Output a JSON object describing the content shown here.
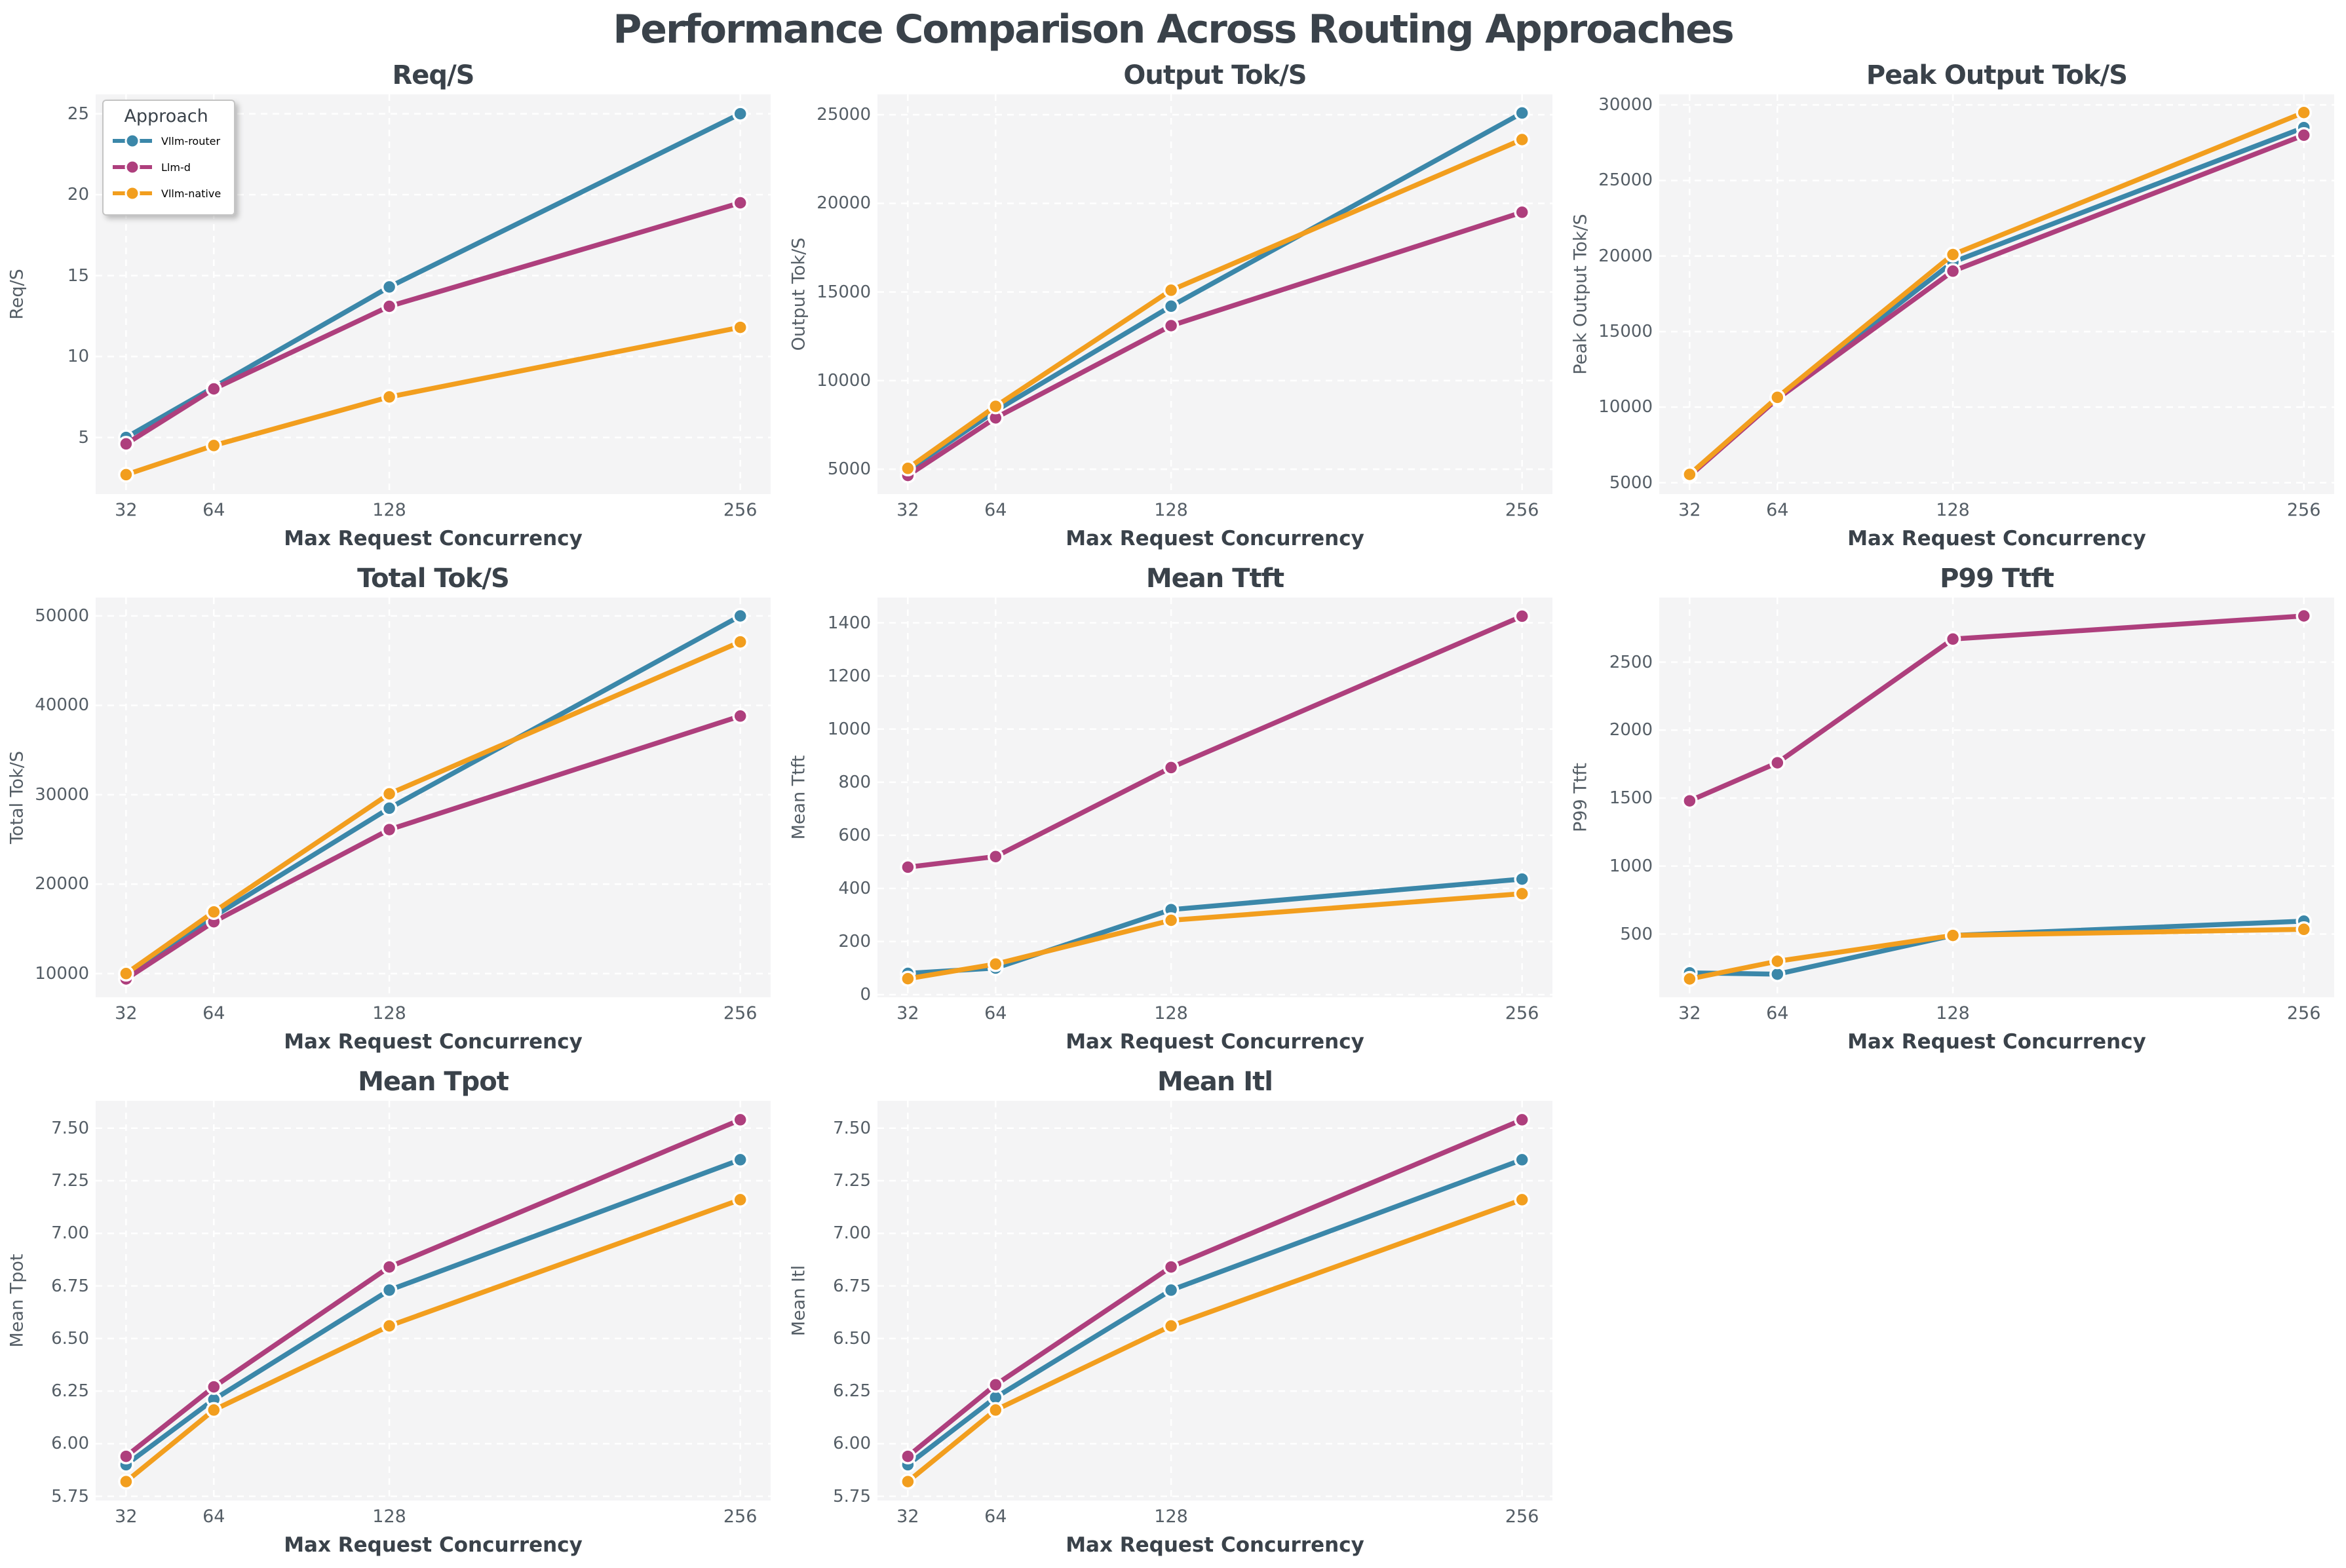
{
  "chart_data": {
    "type": "line",
    "suptitle": "Performance Comparison Across Routing Approaches",
    "x": [
      32,
      64,
      128,
      256
    ],
    "x_tick_labels": [
      "32",
      "64",
      "128",
      "256"
    ],
    "xlabel": "Max Request Concurrency",
    "legend": {
      "title": "Approach",
      "position": "upper-left-of-first-subplot",
      "entries": [
        "Vllm-router",
        "Llm-d",
        "Vllm-native"
      ]
    },
    "series_colors": {
      "Vllm-router": "#3b87a9",
      "Llm-d": "#ae3f7d",
      "Vllm-native": "#f29e1e"
    },
    "style": {
      "plot_bg": "#f4f4f5",
      "grid_color": "#ffffff",
      "title_color": "#3a424a",
      "tick_color": "#555e66",
      "grid": "on",
      "grid_dashed": true
    },
    "subplots": [
      {
        "title": "Req/S",
        "ylabel": "Req/S",
        "ylim": [
          1.5,
          26.2
        ],
        "ytick_values": [
          5,
          10,
          15,
          20,
          25
        ],
        "ytick_labels": [
          "5",
          "10",
          "15",
          "20",
          "25"
        ],
        "series": [
          {
            "name": "Vllm-router",
            "values": [
              5.0,
              8.1,
              14.3,
              25.0
            ]
          },
          {
            "name": "Llm-d",
            "values": [
              4.6,
              8.0,
              13.1,
              19.5
            ]
          },
          {
            "name": "Vllm-native",
            "values": [
              2.7,
              4.5,
              7.5,
              11.8
            ]
          }
        ]
      },
      {
        "title": "Output Tok/S",
        "ylabel": "Output Tok/S",
        "ylim": [
          3600,
          26150
        ],
        "ytick_values": [
          5000,
          10000,
          15000,
          20000,
          25000
        ],
        "ytick_labels": [
          "5000",
          "10000",
          "15000",
          "20000",
          "25000"
        ],
        "series": [
          {
            "name": "Vllm-router",
            "values": [
              4950,
              8300,
              14200,
              25100
            ]
          },
          {
            "name": "Llm-d",
            "values": [
              4650,
              7900,
              13100,
              19500
            ]
          },
          {
            "name": "Vllm-native",
            "values": [
              5050,
              8550,
              15100,
              23600
            ]
          }
        ]
      },
      {
        "title": "Peak Output Tok/S",
        "ylabel": "Peak Output Tok/S",
        "ylim": [
          4250,
          30700
        ],
        "ytick_values": [
          5000,
          10000,
          15000,
          20000,
          25000,
          30000
        ],
        "ytick_labels": [
          "5000",
          "10000",
          "15000",
          "20000",
          "25000",
          "30000"
        ],
        "series": [
          {
            "name": "Vllm-router",
            "values": [
              5500,
              10600,
              19600,
              28500
            ]
          },
          {
            "name": "Llm-d",
            "values": [
              5450,
              10550,
              19000,
              28000
            ]
          },
          {
            "name": "Vllm-native",
            "values": [
              5550,
              10650,
              20100,
              29500
            ]
          }
        ]
      },
      {
        "title": "Total Tok/S",
        "ylabel": "Total Tok/S",
        "ylim": [
          7350,
          52050
        ],
        "ytick_values": [
          10000,
          20000,
          30000,
          40000,
          50000
        ],
        "ytick_labels": [
          "10000",
          "20000",
          "30000",
          "40000",
          "50000"
        ],
        "series": [
          {
            "name": "Vllm-router",
            "values": [
              9900,
              16400,
              28500,
              50000
            ]
          },
          {
            "name": "Llm-d",
            "values": [
              9400,
              15800,
              26100,
              38800
            ]
          },
          {
            "name": "Vllm-native",
            "values": [
              10000,
              16900,
              30100,
              47100
            ]
          }
        ]
      },
      {
        "title": "Mean Ttft",
        "ylabel": "Mean Ttft",
        "ylim": [
          -10,
          1495
        ],
        "ytick_values": [
          0,
          200,
          400,
          600,
          800,
          1000,
          1200,
          1400
        ],
        "ytick_labels": [
          "0",
          "200",
          "400",
          "600",
          "800",
          "1000",
          "1200",
          "1400"
        ],
        "series": [
          {
            "name": "Vllm-router",
            "values": [
              80,
              100,
              320,
              435
            ]
          },
          {
            "name": "Llm-d",
            "values": [
              480,
              520,
              855,
              1425
            ]
          },
          {
            "name": "Vllm-native",
            "values": [
              60,
              115,
              280,
              380
            ]
          }
        ]
      },
      {
        "title": "P99 Ttft",
        "ylabel": "P99 Ttft",
        "ylim": [
          35,
          2975
        ],
        "ytick_values": [
          500,
          1000,
          1500,
          2000,
          2500
        ],
        "ytick_labels": [
          "500",
          "1000",
          "1500",
          "2000",
          "2500"
        ],
        "series": [
          {
            "name": "Vllm-router",
            "values": [
              215,
              205,
              490,
              595
            ]
          },
          {
            "name": "Llm-d",
            "values": [
              1480,
              1760,
              2670,
              2840
            ]
          },
          {
            "name": "Vllm-native",
            "values": [
              170,
              300,
              490,
              535
            ]
          }
        ]
      },
      {
        "title": "Mean Tpot",
        "ylabel": "Mean Tpot",
        "ylim": [
          5.73,
          7.63
        ],
        "ytick_values": [
          5.75,
          6.0,
          6.25,
          6.5,
          6.75,
          7.0,
          7.25,
          7.5
        ],
        "ytick_labels": [
          "5.75",
          "6.00",
          "6.25",
          "6.50",
          "6.75",
          "7.00",
          "7.25",
          "7.50"
        ],
        "series": [
          {
            "name": "Vllm-router",
            "values": [
              5.9,
              6.21,
              6.73,
              7.35
            ]
          },
          {
            "name": "Llm-d",
            "values": [
              5.94,
              6.27,
              6.84,
              7.54
            ]
          },
          {
            "name": "Vllm-native",
            "values": [
              5.82,
              6.16,
              6.56,
              7.16
            ]
          }
        ]
      },
      {
        "title": "Mean Itl",
        "ylabel": "Mean Itl",
        "ylim": [
          5.73,
          7.63
        ],
        "ytick_values": [
          5.75,
          6.0,
          6.25,
          6.5,
          6.75,
          7.0,
          7.25,
          7.5
        ],
        "ytick_labels": [
          "5.75",
          "6.00",
          "6.25",
          "6.50",
          "6.75",
          "7.00",
          "7.25",
          "7.50"
        ],
        "series": [
          {
            "name": "Vllm-router",
            "values": [
              5.9,
              6.22,
              6.73,
              7.35
            ]
          },
          {
            "name": "Llm-d",
            "values": [
              5.94,
              6.28,
              6.84,
              7.54
            ]
          },
          {
            "name": "Vllm-native",
            "values": [
              5.82,
              6.16,
              6.56,
              7.16
            ]
          }
        ]
      }
    ]
  }
}
